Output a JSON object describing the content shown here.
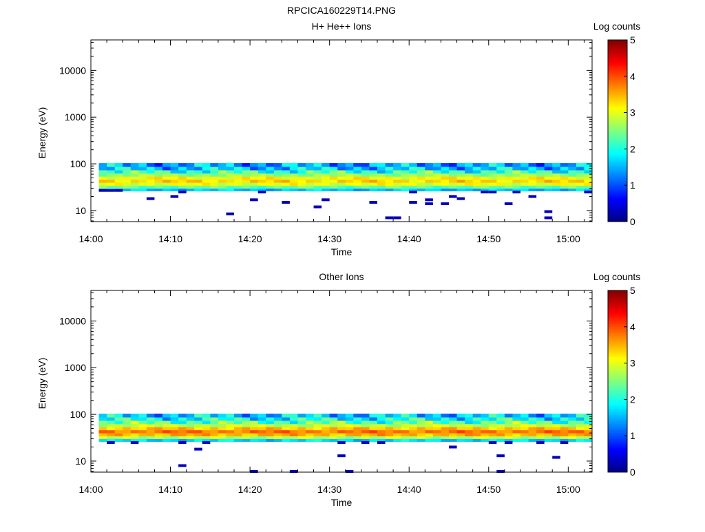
{
  "figure_title": "RPCICA160229T14.PNG",
  "chart_data": [
    {
      "type": "heatmap",
      "title": "H+ He++ Ions",
      "xlabel": "Time",
      "ylabel": "Energy (eV)",
      "colorbar_label": "Log counts",
      "x_range": [
        "14:00",
        "15:03"
      ],
      "x_ticks": [
        "14:00",
        "14:10",
        "14:20",
        "14:30",
        "14:40",
        "14:50",
        "15:00"
      ],
      "y_scale": "log",
      "y_range": [
        5.8,
        45000
      ],
      "y_ticks": [
        "10",
        "100",
        "1000",
        "10000"
      ],
      "colorbar_range": [
        0,
        5
      ],
      "colorbar_ticks": [
        "0",
        "1",
        "2",
        "3",
        "4",
        "5"
      ],
      "populated_time_range": [
        "14:01",
        "15:03"
      ],
      "energy_bands_eV": [
        28,
        32,
        37,
        43,
        50,
        58,
        68,
        80,
        95
      ],
      "band_log_counts": [
        1.6,
        2.4,
        3.0,
        3.3,
        3.1,
        2.6,
        2.1,
        1.6,
        1.4
      ],
      "low_energy_events": [
        {
          "time": "14:01",
          "energy": 27,
          "log_counts": 0.3
        },
        {
          "time": "14:02",
          "energy": 27,
          "log_counts": 0.3
        },
        {
          "time": "14:03",
          "energy": 27,
          "log_counts": 0.3
        },
        {
          "time": "14:07",
          "energy": 18,
          "log_counts": 0.3
        },
        {
          "time": "14:10",
          "energy": 20,
          "log_counts": 0.3
        },
        {
          "time": "14:11",
          "energy": 25,
          "log_counts": 0.3
        },
        {
          "time": "14:17",
          "energy": 8.5,
          "log_counts": 0.2
        },
        {
          "time": "14:20",
          "energy": 17,
          "log_counts": 0.3
        },
        {
          "time": "14:21",
          "energy": 25,
          "log_counts": 0.3
        },
        {
          "time": "14:24",
          "energy": 15,
          "log_counts": 0.3
        },
        {
          "time": "14:28",
          "energy": 12,
          "log_counts": 0.3
        },
        {
          "time": "14:29",
          "energy": 17,
          "log_counts": 0.3
        },
        {
          "time": "14:35",
          "energy": 15,
          "log_counts": 0.3
        },
        {
          "time": "14:37",
          "energy": 7,
          "log_counts": 0.3
        },
        {
          "time": "14:38",
          "energy": 7,
          "log_counts": 0.3
        },
        {
          "time": "14:40",
          "energy": 15,
          "log_counts": 0.3
        },
        {
          "time": "14:40",
          "energy": 25,
          "log_counts": 0.3
        },
        {
          "time": "14:42",
          "energy": 14,
          "log_counts": 0.3
        },
        {
          "time": "14:42",
          "energy": 17,
          "log_counts": 0.3
        },
        {
          "time": "14:44",
          "energy": 14,
          "log_counts": 0.3
        },
        {
          "time": "14:45",
          "energy": 20,
          "log_counts": 0.3
        },
        {
          "time": "14:46",
          "energy": 18,
          "log_counts": 0.3
        },
        {
          "time": "14:49",
          "energy": 25,
          "log_counts": 0.3
        },
        {
          "time": "14:50",
          "energy": 25,
          "log_counts": 0.3
        },
        {
          "time": "14:52",
          "energy": 14,
          "log_counts": 0.3
        },
        {
          "time": "14:53",
          "energy": 25,
          "log_counts": 0.3
        },
        {
          "time": "14:55",
          "energy": 20,
          "log_counts": 0.3
        },
        {
          "time": "14:57",
          "energy": 7,
          "log_counts": 0.3
        },
        {
          "time": "14:57",
          "energy": 9.5,
          "log_counts": 0.3
        },
        {
          "time": "15:02",
          "energy": 25,
          "log_counts": 0.3
        }
      ]
    },
    {
      "type": "heatmap",
      "title": "Other Ions",
      "xlabel": "Time",
      "ylabel": "Energy (eV)",
      "colorbar_label": "Log counts",
      "x_range": [
        "14:00",
        "15:03"
      ],
      "x_ticks": [
        "14:00",
        "14:10",
        "14:20",
        "14:30",
        "14:40",
        "14:50",
        "15:00"
      ],
      "y_scale": "log",
      "y_range": [
        5.8,
        45000
      ],
      "y_ticks": [
        "10",
        "100",
        "1000",
        "10000"
      ],
      "colorbar_range": [
        0,
        5
      ],
      "colorbar_ticks": [
        "0",
        "1",
        "2",
        "3",
        "4",
        "5"
      ],
      "populated_time_range": [
        "14:01",
        "15:03"
      ],
      "energy_bands_eV": [
        28,
        32,
        37,
        43,
        50,
        58,
        68,
        80,
        95
      ],
      "band_log_counts": [
        1.7,
        2.8,
        3.5,
        3.8,
        3.4,
        2.8,
        2.3,
        1.9,
        1.6
      ],
      "low_energy_events": [
        {
          "time": "14:02",
          "energy": 25,
          "log_counts": 0.3
        },
        {
          "time": "14:05",
          "energy": 25,
          "log_counts": 0.3
        },
        {
          "time": "14:11",
          "energy": 25,
          "log_counts": 0.3
        },
        {
          "time": "14:11",
          "energy": 8,
          "log_counts": 0.3
        },
        {
          "time": "14:13",
          "energy": 18,
          "log_counts": 0.3
        },
        {
          "time": "14:14",
          "energy": 25,
          "log_counts": 0.3
        },
        {
          "time": "14:20",
          "energy": 6,
          "log_counts": 0.3
        },
        {
          "time": "14:25",
          "energy": 6,
          "log_counts": 0.3
        },
        {
          "time": "14:31",
          "energy": 25,
          "log_counts": 0.3
        },
        {
          "time": "14:31",
          "energy": 13,
          "log_counts": 0.3
        },
        {
          "time": "14:32",
          "energy": 6,
          "log_counts": 0.3
        },
        {
          "time": "14:34",
          "energy": 25,
          "log_counts": 0.3
        },
        {
          "time": "14:36",
          "energy": 25,
          "log_counts": 0.3
        },
        {
          "time": "14:45",
          "energy": 20,
          "log_counts": 0.3
        },
        {
          "time": "14:50",
          "energy": 25,
          "log_counts": 0.3
        },
        {
          "time": "14:51",
          "energy": 13,
          "log_counts": 0.3
        },
        {
          "time": "14:51",
          "energy": 6,
          "log_counts": 0.3
        },
        {
          "time": "14:52",
          "energy": 25,
          "log_counts": 0.3
        },
        {
          "time": "14:56",
          "energy": 25,
          "log_counts": 0.3
        },
        {
          "time": "14:58",
          "energy": 12,
          "log_counts": 0.3
        },
        {
          "time": "14:59",
          "energy": 25,
          "log_counts": 0.3
        }
      ]
    }
  ]
}
